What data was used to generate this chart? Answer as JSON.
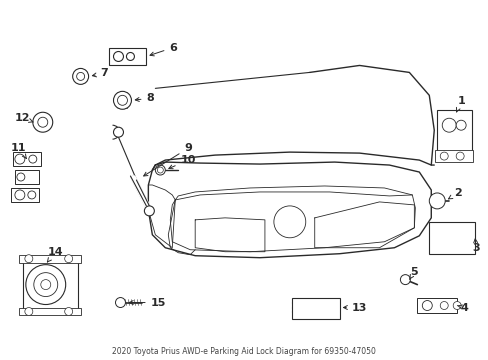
{
  "title": "2020 Toyota Prius AWD-e Parking Aid Lock Diagram for 69350-47050",
  "bg_color": "#ffffff",
  "line_color": "#2a2a2a",
  "fig_width": 4.89,
  "fig_height": 3.6,
  "dpi": 100
}
